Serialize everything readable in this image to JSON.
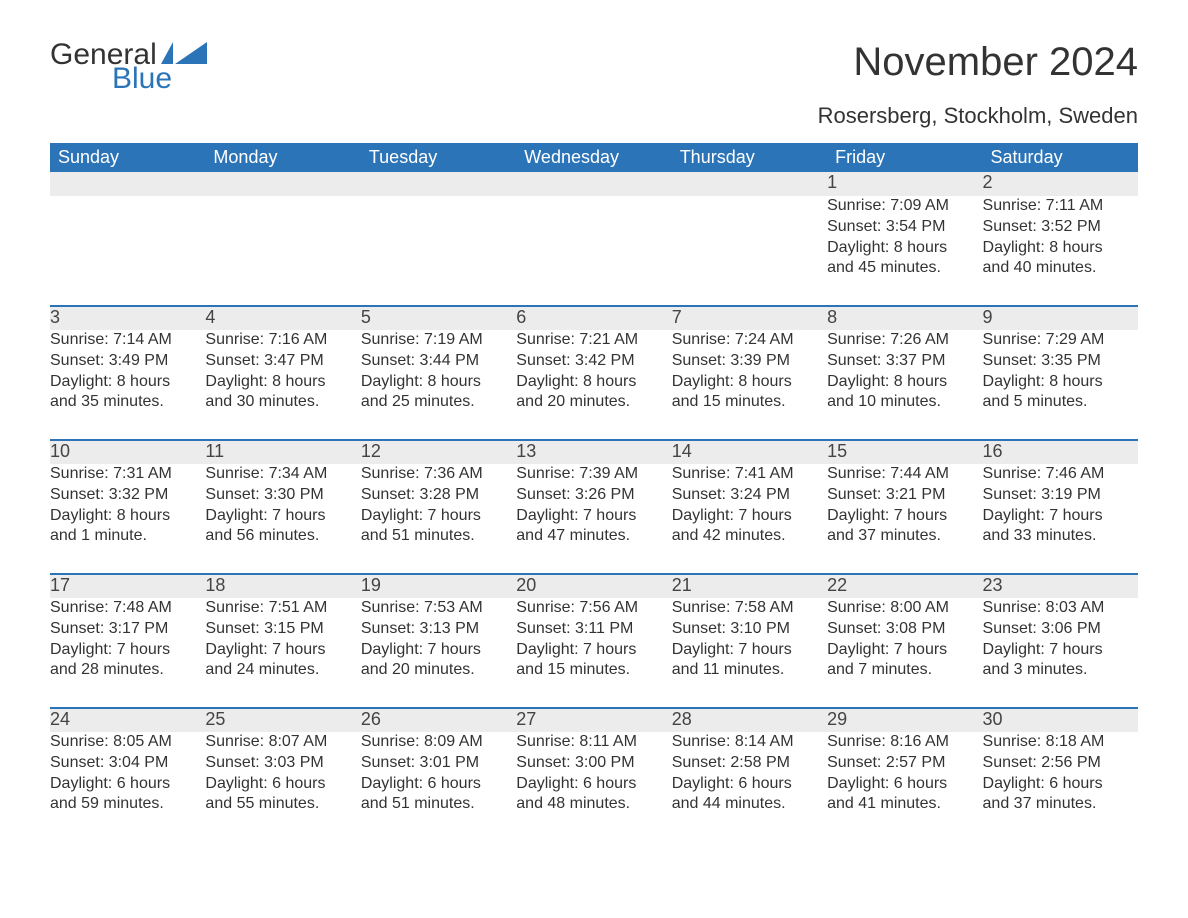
{
  "logo": {
    "word1": "General",
    "word2": "Blue",
    "shape_color": "#2c74b8"
  },
  "title": "November 2024",
  "location": "Rosersberg, Stockholm, Sweden",
  "colors": {
    "header_bg": "#2c74b8",
    "header_text": "#ffffff",
    "daynum_bg": "#ececec",
    "row_border": "#2c74b8",
    "body_text": "#333333",
    "background": "#ffffff"
  },
  "typography": {
    "title_fontsize": 40,
    "location_fontsize": 22,
    "header_fontsize": 18,
    "daynum_fontsize": 18,
    "detail_fontsize": 16
  },
  "day_headers": [
    "Sunday",
    "Monday",
    "Tuesday",
    "Wednesday",
    "Thursday",
    "Friday",
    "Saturday"
  ],
  "weeks": [
    [
      null,
      null,
      null,
      null,
      null,
      {
        "n": "1",
        "sr": "Sunrise: 7:09 AM",
        "ss": "Sunset: 3:54 PM",
        "d1": "Daylight: 8 hours",
        "d2": "and 45 minutes."
      },
      {
        "n": "2",
        "sr": "Sunrise: 7:11 AM",
        "ss": "Sunset: 3:52 PM",
        "d1": "Daylight: 8 hours",
        "d2": "and 40 minutes."
      }
    ],
    [
      {
        "n": "3",
        "sr": "Sunrise: 7:14 AM",
        "ss": "Sunset: 3:49 PM",
        "d1": "Daylight: 8 hours",
        "d2": "and 35 minutes."
      },
      {
        "n": "4",
        "sr": "Sunrise: 7:16 AM",
        "ss": "Sunset: 3:47 PM",
        "d1": "Daylight: 8 hours",
        "d2": "and 30 minutes."
      },
      {
        "n": "5",
        "sr": "Sunrise: 7:19 AM",
        "ss": "Sunset: 3:44 PM",
        "d1": "Daylight: 8 hours",
        "d2": "and 25 minutes."
      },
      {
        "n": "6",
        "sr": "Sunrise: 7:21 AM",
        "ss": "Sunset: 3:42 PM",
        "d1": "Daylight: 8 hours",
        "d2": "and 20 minutes."
      },
      {
        "n": "7",
        "sr": "Sunrise: 7:24 AM",
        "ss": "Sunset: 3:39 PM",
        "d1": "Daylight: 8 hours",
        "d2": "and 15 minutes."
      },
      {
        "n": "8",
        "sr": "Sunrise: 7:26 AM",
        "ss": "Sunset: 3:37 PM",
        "d1": "Daylight: 8 hours",
        "d2": "and 10 minutes."
      },
      {
        "n": "9",
        "sr": "Sunrise: 7:29 AM",
        "ss": "Sunset: 3:35 PM",
        "d1": "Daylight: 8 hours",
        "d2": "and 5 minutes."
      }
    ],
    [
      {
        "n": "10",
        "sr": "Sunrise: 7:31 AM",
        "ss": "Sunset: 3:32 PM",
        "d1": "Daylight: 8 hours",
        "d2": "and 1 minute."
      },
      {
        "n": "11",
        "sr": "Sunrise: 7:34 AM",
        "ss": "Sunset: 3:30 PM",
        "d1": "Daylight: 7 hours",
        "d2": "and 56 minutes."
      },
      {
        "n": "12",
        "sr": "Sunrise: 7:36 AM",
        "ss": "Sunset: 3:28 PM",
        "d1": "Daylight: 7 hours",
        "d2": "and 51 minutes."
      },
      {
        "n": "13",
        "sr": "Sunrise: 7:39 AM",
        "ss": "Sunset: 3:26 PM",
        "d1": "Daylight: 7 hours",
        "d2": "and 47 minutes."
      },
      {
        "n": "14",
        "sr": "Sunrise: 7:41 AM",
        "ss": "Sunset: 3:24 PM",
        "d1": "Daylight: 7 hours",
        "d2": "and 42 minutes."
      },
      {
        "n": "15",
        "sr": "Sunrise: 7:44 AM",
        "ss": "Sunset: 3:21 PM",
        "d1": "Daylight: 7 hours",
        "d2": "and 37 minutes."
      },
      {
        "n": "16",
        "sr": "Sunrise: 7:46 AM",
        "ss": "Sunset: 3:19 PM",
        "d1": "Daylight: 7 hours",
        "d2": "and 33 minutes."
      }
    ],
    [
      {
        "n": "17",
        "sr": "Sunrise: 7:48 AM",
        "ss": "Sunset: 3:17 PM",
        "d1": "Daylight: 7 hours",
        "d2": "and 28 minutes."
      },
      {
        "n": "18",
        "sr": "Sunrise: 7:51 AM",
        "ss": "Sunset: 3:15 PM",
        "d1": "Daylight: 7 hours",
        "d2": "and 24 minutes."
      },
      {
        "n": "19",
        "sr": "Sunrise: 7:53 AM",
        "ss": "Sunset: 3:13 PM",
        "d1": "Daylight: 7 hours",
        "d2": "and 20 minutes."
      },
      {
        "n": "20",
        "sr": "Sunrise: 7:56 AM",
        "ss": "Sunset: 3:11 PM",
        "d1": "Daylight: 7 hours",
        "d2": "and 15 minutes."
      },
      {
        "n": "21",
        "sr": "Sunrise: 7:58 AM",
        "ss": "Sunset: 3:10 PM",
        "d1": "Daylight: 7 hours",
        "d2": "and 11 minutes."
      },
      {
        "n": "22",
        "sr": "Sunrise: 8:00 AM",
        "ss": "Sunset: 3:08 PM",
        "d1": "Daylight: 7 hours",
        "d2": "and 7 minutes."
      },
      {
        "n": "23",
        "sr": "Sunrise: 8:03 AM",
        "ss": "Sunset: 3:06 PM",
        "d1": "Daylight: 7 hours",
        "d2": "and 3 minutes."
      }
    ],
    [
      {
        "n": "24",
        "sr": "Sunrise: 8:05 AM",
        "ss": "Sunset: 3:04 PM",
        "d1": "Daylight: 6 hours",
        "d2": "and 59 minutes."
      },
      {
        "n": "25",
        "sr": "Sunrise: 8:07 AM",
        "ss": "Sunset: 3:03 PM",
        "d1": "Daylight: 6 hours",
        "d2": "and 55 minutes."
      },
      {
        "n": "26",
        "sr": "Sunrise: 8:09 AM",
        "ss": "Sunset: 3:01 PM",
        "d1": "Daylight: 6 hours",
        "d2": "and 51 minutes."
      },
      {
        "n": "27",
        "sr": "Sunrise: 8:11 AM",
        "ss": "Sunset: 3:00 PM",
        "d1": "Daylight: 6 hours",
        "d2": "and 48 minutes."
      },
      {
        "n": "28",
        "sr": "Sunrise: 8:14 AM",
        "ss": "Sunset: 2:58 PM",
        "d1": "Daylight: 6 hours",
        "d2": "and 44 minutes."
      },
      {
        "n": "29",
        "sr": "Sunrise: 8:16 AM",
        "ss": "Sunset: 2:57 PM",
        "d1": "Daylight: 6 hours",
        "d2": "and 41 minutes."
      },
      {
        "n": "30",
        "sr": "Sunrise: 8:18 AM",
        "ss": "Sunset: 2:56 PM",
        "d1": "Daylight: 6 hours",
        "d2": "and 37 minutes."
      }
    ]
  ]
}
